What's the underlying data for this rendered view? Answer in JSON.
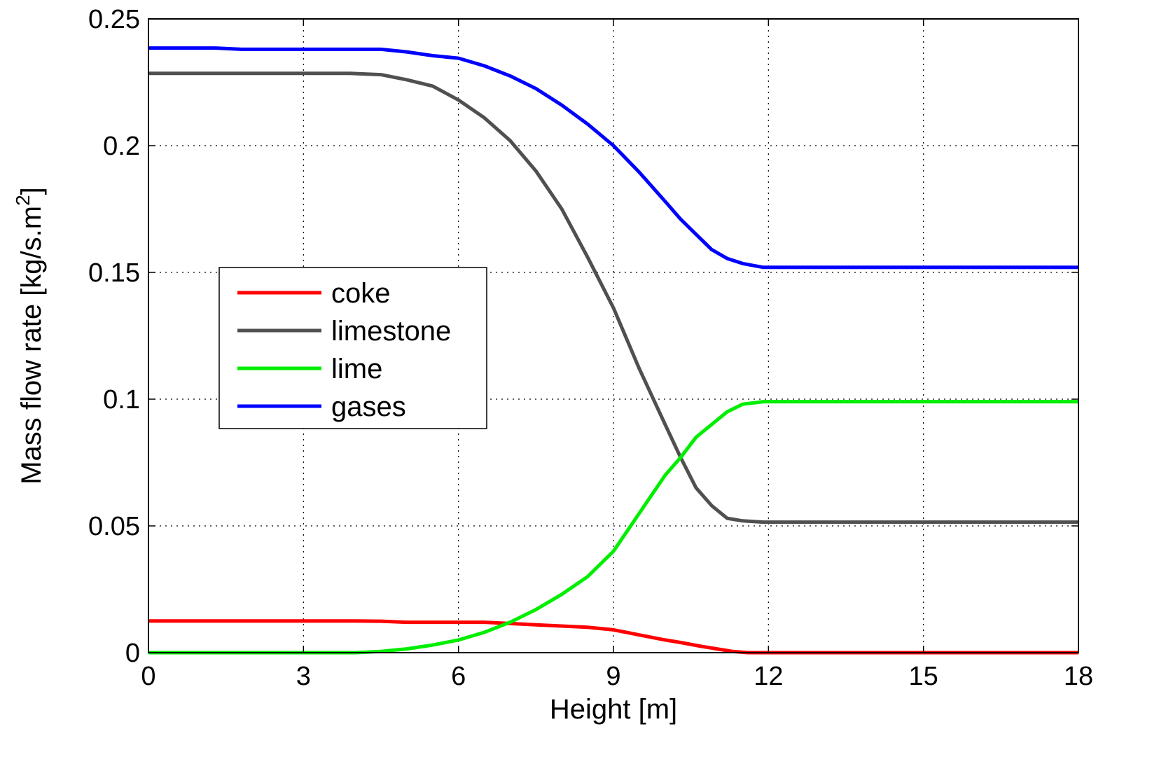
{
  "chart_data": {
    "type": "line",
    "xlabel": "Height [m]",
    "ylabel": "Mass flow rate [kg/s.m",
    "ylabel_sup": "2",
    "ylabel_close": "]",
    "xlim": [
      0,
      18
    ],
    "ylim": [
      0,
      0.25
    ],
    "xticks": [
      0,
      3,
      6,
      9,
      12,
      15,
      18
    ],
    "xtick_labels": [
      "0",
      "3",
      "6",
      "9",
      "12",
      "15",
      "18"
    ],
    "yticks": [
      0,
      0.05,
      0.1,
      0.15,
      0.2,
      0.25
    ],
    "ytick_labels": [
      "0",
      "0.05",
      "0.1",
      "0.15",
      "0.2",
      "0.25"
    ],
    "grid": true,
    "legend_position": "center-left",
    "series": [
      {
        "name": "coke",
        "color": "#ff0000",
        "x": [
          0,
          1,
          2,
          3,
          4,
          4.5,
          5,
          5.5,
          6,
          6.5,
          7,
          7.5,
          8,
          8.5,
          9,
          9.5,
          10,
          10.3,
          10.7,
          11,
          11.3,
          11.6,
          12,
          13,
          14,
          15,
          16,
          17,
          18
        ],
        "y": [
          0.0125,
          0.0125,
          0.0125,
          0.0125,
          0.0125,
          0.0124,
          0.012,
          0.012,
          0.012,
          0.012,
          0.0115,
          0.011,
          0.0105,
          0.01,
          0.009,
          0.007,
          0.005,
          0.004,
          0.0025,
          0.0015,
          0.0005,
          0,
          0,
          0,
          0,
          0,
          0,
          0,
          0
        ]
      },
      {
        "name": "limestone",
        "color": "#505050",
        "x": [
          0,
          1,
          2,
          3,
          3.9,
          4.5,
          5,
          5.5,
          6,
          6.5,
          7,
          7.5,
          8,
          8.5,
          9,
          9.5,
          10,
          10.3,
          10.6,
          10.9,
          11.2,
          11.5,
          11.9,
          12.5,
          13,
          14,
          15,
          16,
          17,
          18
        ],
        "y": [
          0.2285,
          0.2285,
          0.2285,
          0.2285,
          0.2285,
          0.228,
          0.226,
          0.2235,
          0.218,
          0.211,
          0.202,
          0.19,
          0.175,
          0.156,
          0.136,
          0.112,
          0.09,
          0.077,
          0.065,
          0.058,
          0.053,
          0.052,
          0.0515,
          0.0515,
          0.0515,
          0.0515,
          0.0515,
          0.0515,
          0.0515,
          0.0515
        ]
      },
      {
        "name": "lime",
        "color": "#00ee00",
        "x": [
          0,
          1,
          2,
          3,
          4,
          4.5,
          5,
          5.5,
          6,
          6.5,
          7,
          7.5,
          8,
          8.5,
          9,
          9.5,
          10,
          10.3,
          10.6,
          10.9,
          11.2,
          11.5,
          11.9,
          12.5,
          13,
          14,
          15,
          16,
          17,
          18
        ],
        "y": [
          0,
          0,
          0,
          0,
          0,
          0.0005,
          0.0015,
          0.003,
          0.005,
          0.008,
          0.012,
          0.017,
          0.023,
          0.03,
          0.04,
          0.055,
          0.07,
          0.077,
          0.085,
          0.09,
          0.095,
          0.098,
          0.099,
          0.099,
          0.099,
          0.099,
          0.099,
          0.099,
          0.099,
          0.099
        ]
      },
      {
        "name": "gases",
        "color": "#0000ff",
        "x": [
          0,
          1,
          1.3,
          1.8,
          3,
          4.5,
          5,
          5.5,
          6,
          6.5,
          7,
          7.5,
          8,
          8.5,
          9,
          9.5,
          10,
          10.3,
          10.6,
          10.9,
          11.2,
          11.5,
          11.9,
          12.5,
          13,
          14,
          15,
          16,
          17,
          18
        ],
        "y": [
          0.2385,
          0.2385,
          0.2385,
          0.238,
          0.238,
          0.238,
          0.237,
          0.2355,
          0.2345,
          0.2315,
          0.2275,
          0.2225,
          0.216,
          0.2085,
          0.2,
          0.1895,
          0.178,
          0.171,
          0.165,
          0.159,
          0.1555,
          0.1535,
          0.152,
          0.152,
          0.152,
          0.152,
          0.152,
          0.152,
          0.152,
          0.152
        ]
      }
    ]
  }
}
